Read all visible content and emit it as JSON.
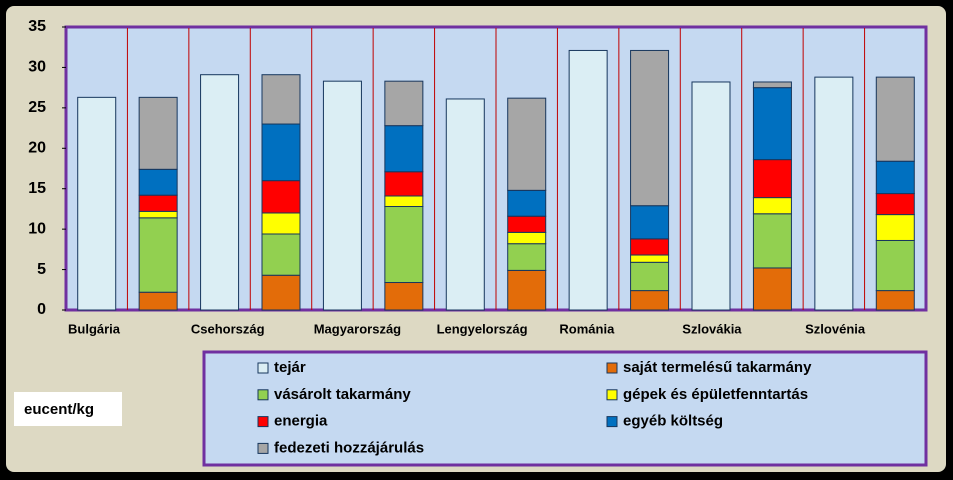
{
  "chart_data": {
    "type": "bar",
    "ylabel": "eucent/kg",
    "categories": [
      "Bulgária",
      "Csehország",
      "Magyarország",
      "Lengyelország",
      "Románia",
      "Szlovákia",
      "Szlovénia"
    ],
    "series": [
      {
        "name": "tejár",
        "color": "#dbeef4",
        "stack": "price",
        "values": [
          26.3,
          29.1,
          28.3,
          26.1,
          32.1,
          28.2,
          28.8
        ]
      },
      {
        "name": "saját termelésű takarmány",
        "color": "#e36c09",
        "stack": "cost",
        "values": [
          2.2,
          4.3,
          3.4,
          4.9,
          2.4,
          5.2,
          2.4
        ]
      },
      {
        "name": "vásárolt takarmány",
        "color": "#92d050",
        "stack": "cost",
        "values": [
          9.2,
          5.1,
          9.4,
          3.3,
          3.5,
          6.7,
          6.2
        ]
      },
      {
        "name": "gépek és épületfenntartás",
        "color": "#ffff00",
        "stack": "cost",
        "values": [
          0.8,
          2.6,
          1.3,
          1.4,
          0.9,
          2.0,
          3.2
        ]
      },
      {
        "name": "energia",
        "color": "#ff0000",
        "stack": "cost",
        "values": [
          2.0,
          4.0,
          3.0,
          2.0,
          2.0,
          4.7,
          2.6
        ]
      },
      {
        "name": "egyéb költség",
        "color": "#0070c0",
        "stack": "cost",
        "values": [
          3.2,
          7.0,
          5.7,
          3.2,
          4.1,
          8.9,
          4.0
        ]
      },
      {
        "name": "fedezeti hozzájárulás",
        "color": "#a6a6a6",
        "stack": "cost",
        "values": [
          8.9,
          6.1,
          5.5,
          11.4,
          19.2,
          0.7,
          10.4
        ]
      }
    ],
    "ylim": [
      0,
      35
    ],
    "yticks": [
      0,
      5,
      10,
      15,
      20,
      25,
      30,
      35
    ],
    "grid": false
  }
}
